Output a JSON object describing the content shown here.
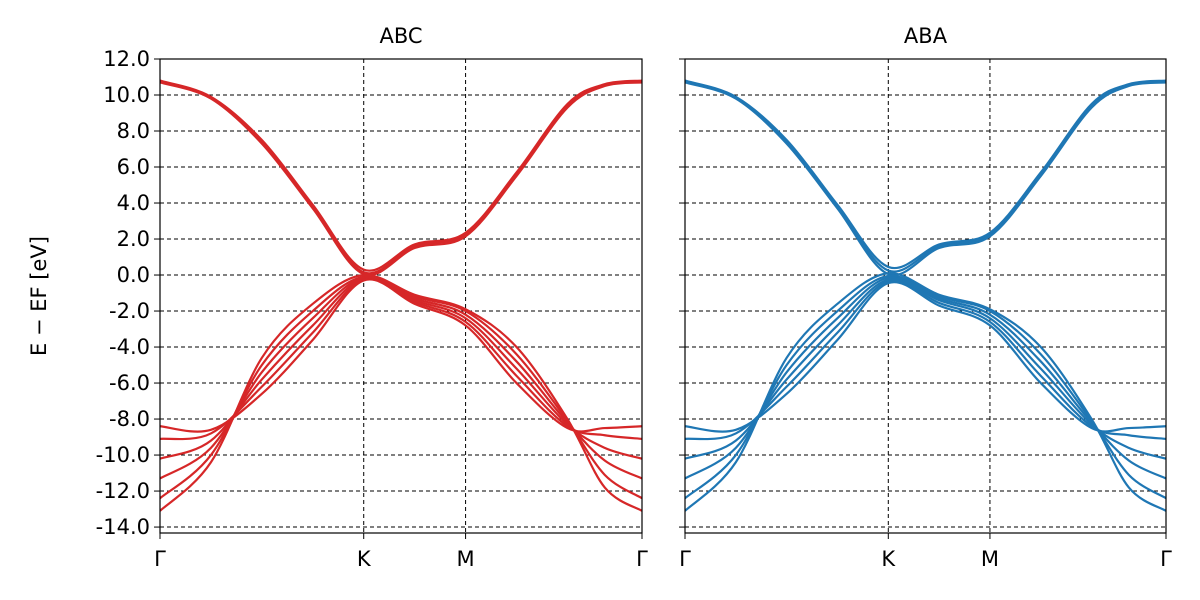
{
  "chart_data": [
    {
      "type": "line",
      "title": "ABC",
      "y_label": "E − EF [eV]",
      "x": [
        0,
        0.25,
        0.5,
        0.75,
        1,
        1.25,
        1.5,
        1.75,
        2,
        2.183,
        2.366
      ],
      "xlim": [
        0,
        2.366
      ],
      "xticks": [
        {
          "value": 0,
          "label": "Γ"
        },
        {
          "value": 1,
          "label": "K"
        },
        {
          "value": 1.5,
          "label": "M"
        },
        {
          "value": 2.366,
          "label": "Γ"
        }
      ],
      "ylim": [
        -14.33,
        12
      ],
      "yticks": [
        {
          "value": 12,
          "label": "12.0"
        },
        {
          "value": 10,
          "label": "10.0"
        },
        {
          "value": 8,
          "label": "8.0"
        },
        {
          "value": 6,
          "label": "6.0"
        },
        {
          "value": 4,
          "label": "4.0"
        },
        {
          "value": 2,
          "label": "2.0"
        },
        {
          "value": 0,
          "label": "0.0"
        },
        {
          "value": -2,
          "label": "-2.0"
        },
        {
          "value": -4,
          "label": "-4.0"
        },
        {
          "value": -6,
          "label": "-6.0"
        },
        {
          "value": -8,
          "label": "-8.0"
        },
        {
          "value": -10,
          "label": "-10.0"
        },
        {
          "value": -12,
          "label": "-12.0"
        },
        {
          "value": -14,
          "label": "-14.0"
        }
      ],
      "grid": true,
      "show_ytick_labels": true,
      "series": [
        {
          "color": "#d62728",
          "values": [
            10.8,
            9.9,
            7.5,
            3.9,
            0.3,
            1.7,
            2.35,
            5.7,
            9.5,
            10.6,
            10.8
          ]
        },
        {
          "color": "#d62728",
          "values": [
            10.75,
            9.85,
            7.4,
            3.8,
            0.15,
            1.6,
            2.25,
            5.6,
            9.4,
            10.55,
            10.75
          ]
        },
        {
          "color": "#d62728",
          "values": [
            10.7,
            9.8,
            7.3,
            3.7,
            0.05,
            1.5,
            2.15,
            5.5,
            9.3,
            10.5,
            10.7
          ]
        },
        {
          "color": "#d62728",
          "values": [
            -8.4,
            -8.6,
            -6.6,
            -3.6,
            -0.3,
            -1.6,
            -2.8,
            -6.0,
            -8.5,
            -8.5,
            -8.4
          ]
        },
        {
          "color": "#d62728",
          "values": [
            -9.1,
            -8.8,
            -6.2,
            -3.2,
            -0.25,
            -1.5,
            -2.6,
            -5.6,
            -8.4,
            -8.9,
            -9.1
          ]
        },
        {
          "color": "#d62728",
          "values": [
            -10.2,
            -9.2,
            -5.8,
            -2.8,
            -0.2,
            -1.4,
            -2.4,
            -5.2,
            -8.3,
            -9.6,
            -10.2
          ]
        },
        {
          "color": "#d62728",
          "values": [
            -11.3,
            -9.6,
            -5.4,
            -2.4,
            -0.15,
            -1.3,
            -2.2,
            -4.8,
            -8.2,
            -10.3,
            -11.3
          ]
        },
        {
          "color": "#d62728",
          "values": [
            -12.4,
            -10.0,
            -5.0,
            -2.0,
            -0.1,
            -1.2,
            -2.0,
            -4.4,
            -8.1,
            -11.1,
            -12.4
          ]
        },
        {
          "color": "#d62728",
          "values": [
            -13.1,
            -10.4,
            -4.6,
            -1.6,
            0.0,
            -1.1,
            -1.9,
            -4.0,
            -8.0,
            -11.8,
            -13.1
          ]
        }
      ]
    },
    {
      "type": "line",
      "title": "ABA",
      "x": [
        0,
        0.25,
        0.5,
        0.75,
        1,
        1.25,
        1.5,
        1.75,
        2,
        2.183,
        2.366
      ],
      "xlim": [
        0,
        2.366
      ],
      "xticks": [
        {
          "value": 0,
          "label": "Γ"
        },
        {
          "value": 1,
          "label": "K"
        },
        {
          "value": 1.5,
          "label": "M"
        },
        {
          "value": 2.366,
          "label": "Γ"
        }
      ],
      "ylim": [
        -14.33,
        12
      ],
      "yticks": [
        12,
        10,
        8,
        6,
        4,
        2,
        0,
        -2,
        -4,
        -6,
        -8,
        -10,
        -12,
        -14
      ],
      "grid": true,
      "show_ytick_labels": false,
      "series": [
        {
          "color": "#1f77b4",
          "values": [
            10.8,
            9.9,
            7.5,
            3.9,
            0.45,
            1.7,
            2.35,
            5.7,
            9.5,
            10.6,
            10.8
          ]
        },
        {
          "color": "#1f77b4",
          "values": [
            10.75,
            9.85,
            7.4,
            3.8,
            0.25,
            1.6,
            2.25,
            5.6,
            9.4,
            10.55,
            10.75
          ]
        },
        {
          "color": "#1f77b4",
          "values": [
            10.7,
            9.8,
            7.3,
            3.7,
            0.05,
            1.5,
            2.15,
            5.5,
            9.3,
            10.5,
            10.7
          ]
        },
        {
          "color": "#1f77b4",
          "values": [
            -8.4,
            -8.6,
            -6.6,
            -3.6,
            -0.45,
            -1.7,
            -2.8,
            -6.0,
            -8.5,
            -8.5,
            -8.4
          ]
        },
        {
          "color": "#1f77b4",
          "values": [
            -9.1,
            -8.8,
            -6.2,
            -3.2,
            -0.35,
            -1.55,
            -2.6,
            -5.6,
            -8.4,
            -8.9,
            -9.1
          ]
        },
        {
          "color": "#1f77b4",
          "values": [
            -10.2,
            -9.2,
            -5.8,
            -2.8,
            -0.25,
            -1.4,
            -2.4,
            -5.2,
            -8.3,
            -9.6,
            -10.2
          ]
        },
        {
          "color": "#1f77b4",
          "values": [
            -11.3,
            -9.6,
            -5.4,
            -2.4,
            -0.15,
            -1.3,
            -2.2,
            -4.8,
            -8.2,
            -10.3,
            -11.3
          ]
        },
        {
          "color": "#1f77b4",
          "values": [
            -12.4,
            -10.0,
            -5.0,
            -2.0,
            -0.05,
            -1.2,
            -2.0,
            -4.4,
            -8.1,
            -11.1,
            -12.4
          ]
        },
        {
          "color": "#1f77b4",
          "values": [
            -13.1,
            -10.4,
            -4.6,
            -1.6,
            0.1,
            -1.1,
            -1.9,
            -4.0,
            -8.0,
            -11.8,
            -13.1
          ]
        }
      ]
    }
  ]
}
